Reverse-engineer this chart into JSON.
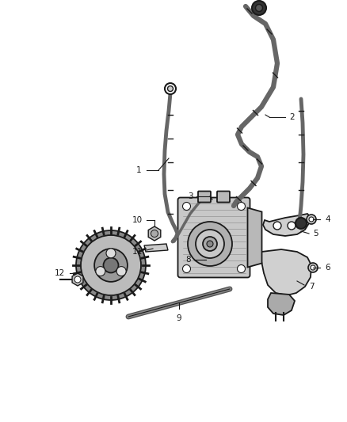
{
  "background_color": "#ffffff",
  "line_color": "#1a1a1a",
  "label_color": "#1a1a1a",
  "fig_width": 4.38,
  "fig_height": 5.33,
  "dpi": 100,
  "label_fontsize": 7.5,
  "hose_lw": 3.5,
  "hose_color": "#555555",
  "parts_color": "#cccccc",
  "parts_edge": "#1a1a1a",
  "gear_color": "#888888",
  "gear_edge": "#1a1a1a",
  "pump_color": "#aaaaaa",
  "pump_edge": "#1a1a1a"
}
